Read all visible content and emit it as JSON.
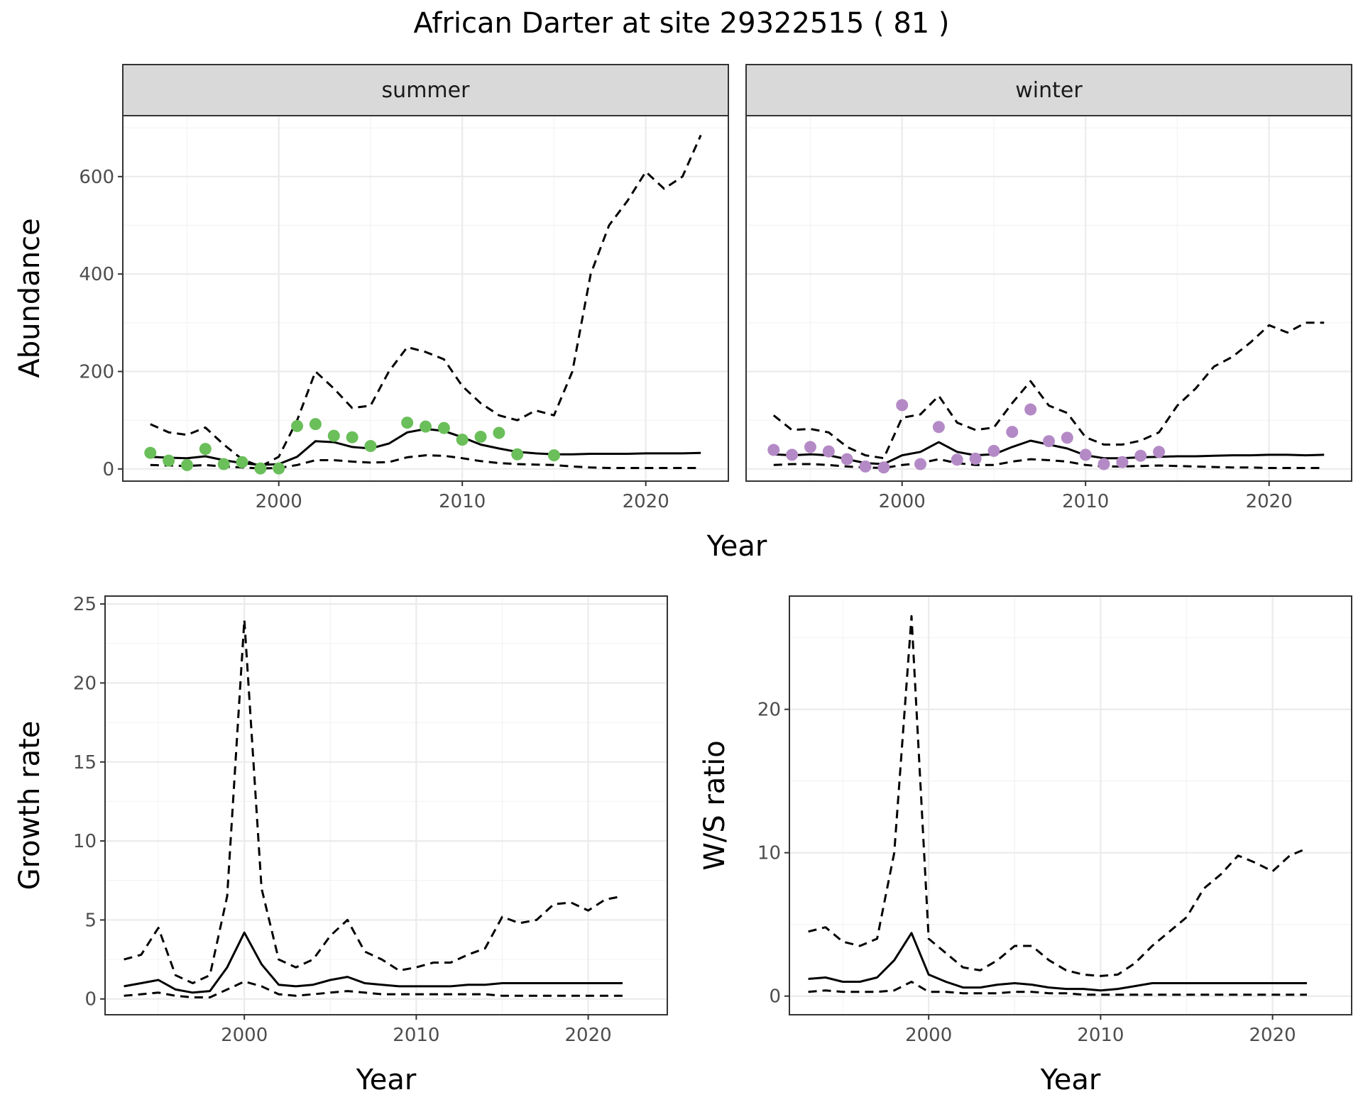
{
  "title": "African Darter at site 29322515 ( 81 )",
  "colors": {
    "summer_points": "#6abf5a",
    "winter_points": "#b48ac6",
    "line": "#000000",
    "panel_strip": "#d9d9d9",
    "grid_major": "#ebebeb",
    "grid_minor": "#f4f4f4"
  },
  "chart_data": [
    {
      "type": "line",
      "facets": [
        "summer",
        "winter"
      ],
      "xlabel": "Year",
      "ylabel": "Abundance",
      "xticks": [
        2000,
        2010,
        2020
      ],
      "yticks": [
        0,
        200,
        400,
        600
      ],
      "xlim": [
        1991.5,
        2024.5
      ],
      "ylim": [
        -25,
        725
      ],
      "grid": true,
      "panels": [
        {
          "facet": "summer",
          "x": [
            1993,
            1994,
            1995,
            1996,
            1997,
            1998,
            1999,
            2000,
            2001,
            2002,
            2003,
            2004,
            2005,
            2006,
            2007,
            2008,
            2009,
            2010,
            2011,
            2012,
            2013,
            2014,
            2015,
            2016,
            2017,
            2018,
            2019,
            2020,
            2021,
            2022,
            2023
          ],
          "series": [
            {
              "style": "solid",
              "values": [
                25,
                23,
                22,
                26,
                18,
                12,
                8,
                10,
                25,
                57,
                55,
                45,
                42,
                52,
                75,
                82,
                78,
                65,
                50,
                42,
                35,
                32,
                30,
                30,
                31,
                31,
                31,
                32,
                32,
                32,
                33
              ]
            },
            {
              "style": "dashed",
              "values": [
                92,
                75,
                70,
                85,
                50,
                20,
                5,
                25,
                100,
                200,
                165,
                125,
                130,
                200,
                250,
                240,
                225,
                170,
                135,
                110,
                100,
                120,
                110,
                200,
                400,
                500,
                550,
                610,
                575,
                600,
                685
              ]
            },
            {
              "style": "dashed",
              "values": [
                8,
                7,
                6,
                8,
                5,
                3,
                1,
                2,
                8,
                18,
                18,
                15,
                13,
                14,
                24,
                28,
                27,
                22,
                16,
                12,
                10,
                9,
                8,
                5,
                3,
                2,
                2,
                2,
                2,
                2,
                2
              ]
            }
          ],
          "points": {
            "x": [
              1993,
              1994,
              1995,
              1996,
              1997,
              1998,
              1999,
              2000,
              2001,
              2002,
              2003,
              2004,
              2005,
              2007,
              2008,
              2009,
              2010,
              2011,
              2012,
              2013,
              2015
            ],
            "y": [
              33,
              17,
              8,
              41,
              10,
              14,
              1,
              1,
              88,
              92,
              68,
              65,
              47,
              95,
              87,
              84,
              60,
              66,
              74,
              30,
              28
            ]
          }
        },
        {
          "facet": "winter",
          "x": [
            1993,
            1994,
            1995,
            1996,
            1997,
            1998,
            1999,
            2000,
            2001,
            2002,
            2003,
            2004,
            2005,
            2006,
            2007,
            2008,
            2009,
            2010,
            2011,
            2012,
            2013,
            2014,
            2015,
            2016,
            2017,
            2018,
            2019,
            2020,
            2021,
            2022,
            2023
          ],
          "series": [
            {
              "style": "solid",
              "values": [
                30,
                28,
                30,
                28,
                20,
                12,
                10,
                28,
                35,
                55,
                35,
                28,
                30,
                45,
                58,
                50,
                42,
                28,
                22,
                22,
                24,
                25,
                26,
                26,
                27,
                28,
                28,
                29,
                29,
                28,
                29
              ]
            },
            {
              "style": "dashed",
              "values": [
                110,
                80,
                82,
                75,
                45,
                28,
                22,
                105,
                112,
                150,
                95,
                80,
                85,
                135,
                180,
                130,
                115,
                65,
                50,
                50,
                58,
                75,
                130,
                165,
                210,
                230,
                260,
                295,
                280,
                300,
                300
              ]
            },
            {
              "style": "dashed",
              "values": [
                8,
                10,
                10,
                8,
                5,
                3,
                2,
                8,
                12,
                20,
                12,
                8,
                8,
                15,
                20,
                18,
                15,
                8,
                5,
                5,
                6,
                7,
                6,
                5,
                4,
                3,
                3,
                2,
                2,
                2,
                2
              ]
            }
          ],
          "points": {
            "x": [
              1993,
              1994,
              1995,
              1996,
              1997,
              1998,
              1999,
              2000,
              2001,
              2002,
              2003,
              2004,
              2005,
              2006,
              2007,
              2008,
              2009,
              2010,
              2011,
              2012,
              2013,
              2014
            ],
            "y": [
              39,
              29,
              45,
              36,
              20,
              5,
              3,
              131,
              10,
              86,
              19,
              21,
              37,
              76,
              122,
              57,
              64,
              29,
              10,
              14,
              27,
              35
            ]
          }
        }
      ]
    },
    {
      "type": "line",
      "xlabel": "Year",
      "ylabel": "Growth rate",
      "xticks": [
        2000,
        2010,
        2020
      ],
      "yticks": [
        0,
        5,
        10,
        15,
        20,
        25
      ],
      "xlim": [
        1991.9,
        2024.6
      ],
      "ylim": [
        -1.0,
        25.5
      ],
      "grid": true,
      "x": [
        1993,
        1994,
        1995,
        1996,
        1997,
        1998,
        1999,
        2000,
        2001,
        2002,
        2003,
        2004,
        2005,
        2006,
        2007,
        2008,
        2009,
        2010,
        2011,
        2012,
        2013,
        2014,
        2015,
        2016,
        2017,
        2018,
        2019,
        2020,
        2021,
        2022
      ],
      "series": [
        {
          "style": "solid",
          "values": [
            0.8,
            1.0,
            1.2,
            0.6,
            0.4,
            0.5,
            2.0,
            4.2,
            2.2,
            0.9,
            0.8,
            0.9,
            1.2,
            1.4,
            1.0,
            0.9,
            0.8,
            0.8,
            0.8,
            0.8,
            0.9,
            0.9,
            1.0,
            1.0,
            1.0,
            1.0,
            1.0,
            1.0,
            1.0,
            1.0
          ]
        },
        {
          "style": "dashed",
          "values": [
            2.5,
            2.8,
            4.5,
            1.5,
            1.0,
            1.5,
            6.5,
            24.0,
            7.0,
            2.5,
            2.0,
            2.5,
            4.0,
            5.0,
            3.0,
            2.5,
            1.8,
            2.0,
            2.3,
            2.3,
            2.8,
            3.2,
            5.2,
            4.8,
            5.0,
            6.0,
            6.1,
            5.6,
            6.3,
            6.5
          ]
        },
        {
          "style": "dashed",
          "values": [
            0.2,
            0.3,
            0.4,
            0.2,
            0.1,
            0.1,
            0.6,
            1.1,
            0.8,
            0.3,
            0.2,
            0.3,
            0.4,
            0.5,
            0.4,
            0.3,
            0.3,
            0.3,
            0.3,
            0.3,
            0.3,
            0.3,
            0.2,
            0.2,
            0.2,
            0.2,
            0.2,
            0.2,
            0.2,
            0.2
          ]
        }
      ]
    },
    {
      "type": "line",
      "xlabel": "Year",
      "ylabel": "W/S ratio",
      "xticks": [
        2000,
        2010,
        2020
      ],
      "yticks": [
        0,
        10,
        20
      ],
      "xlim": [
        1991.9,
        2024.6
      ],
      "ylim": [
        -1.3,
        27.9
      ],
      "grid": true,
      "x": [
        1993,
        1994,
        1995,
        1996,
        1997,
        1998,
        1999,
        2000,
        2001,
        2002,
        2003,
        2004,
        2005,
        2006,
        2007,
        2008,
        2009,
        2010,
        2011,
        2012,
        2013,
        2014,
        2015,
        2016,
        2017,
        2018,
        2019,
        2020,
        2021,
        2022
      ],
      "series": [
        {
          "style": "solid",
          "values": [
            1.2,
            1.3,
            1.0,
            1.0,
            1.3,
            2.5,
            4.4,
            1.5,
            1.0,
            0.6,
            0.6,
            0.8,
            0.9,
            0.8,
            0.6,
            0.5,
            0.5,
            0.4,
            0.5,
            0.7,
            0.9,
            0.9,
            0.9,
            0.9,
            0.9,
            0.9,
            0.9,
            0.9,
            0.9,
            0.9
          ]
        },
        {
          "style": "dashed",
          "values": [
            4.5,
            4.8,
            3.8,
            3.5,
            4.0,
            10.0,
            26.5,
            4.0,
            3.0,
            2.0,
            1.8,
            2.5,
            3.5,
            3.5,
            2.5,
            1.8,
            1.5,
            1.4,
            1.5,
            2.3,
            3.5,
            4.5,
            5.5,
            7.5,
            8.5,
            9.8,
            9.3,
            8.7,
            9.8,
            10.3
          ]
        },
        {
          "style": "dashed",
          "values": [
            0.3,
            0.4,
            0.3,
            0.3,
            0.3,
            0.4,
            1.0,
            0.3,
            0.3,
            0.2,
            0.2,
            0.2,
            0.3,
            0.3,
            0.2,
            0.2,
            0.1,
            0.1,
            0.1,
            0.1,
            0.1,
            0.1,
            0.1,
            0.1,
            0.1,
            0.1,
            0.1,
            0.1,
            0.1,
            0.1
          ]
        }
      ]
    }
  ]
}
